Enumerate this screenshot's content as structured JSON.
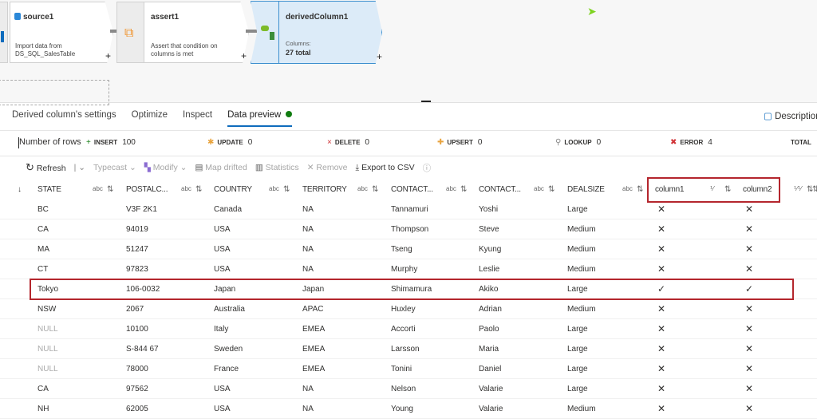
{
  "pipeline": {
    "nodes": [
      {
        "title": "source1",
        "description": "Import data from DS_SQL_SalesTable"
      },
      {
        "title": "assert1",
        "description": "Assert that condition on columns is met"
      },
      {
        "title": "derivedColumn1",
        "columns_label": "Columns:",
        "columns_value": "27 total"
      }
    ],
    "add_label": "+"
  },
  "tabs": [
    "Derived column's settings",
    "Optimize",
    "Inspect",
    "Data preview"
  ],
  "description_label": "Description",
  "stats": {
    "label": "Number of rows",
    "items": [
      {
        "name": "INSERT",
        "value": "100",
        "color": "#107c10",
        "icon": "+"
      },
      {
        "name": "UPDATE",
        "value": "0",
        "color": "#e8a33d",
        "icon": "✱"
      },
      {
        "name": "DELETE",
        "value": "0",
        "color": "#d13438",
        "icon": "×"
      },
      {
        "name": "UPSERT",
        "value": "0",
        "color": "#e8a33d",
        "icon": "✚"
      },
      {
        "name": "LOOKUP",
        "value": "0",
        "color": "#888888",
        "icon": "⚲"
      },
      {
        "name": "ERROR",
        "value": "4",
        "color": "#d13438",
        "icon": "✖"
      },
      {
        "name": "TOTAL",
        "value": "",
        "color": "#333333",
        "icon": ""
      }
    ]
  },
  "toolbar": {
    "refresh": "Refresh",
    "typecast": "Typecast",
    "modify": "Modify",
    "map_drifted": "Map drifted",
    "statistics": "Statistics",
    "remove": "Remove",
    "export": "Export to CSV"
  },
  "table": {
    "columns": [
      "STATE",
      "POSTALC...",
      "COUNTRY",
      "TERRITORY",
      "CONTACT...",
      "CONTACT...",
      "DEALSIZE",
      "column1",
      "column2"
    ],
    "rows": [
      [
        "BC",
        "V3F 2K1",
        "Canada",
        "NA",
        "Tannamuri",
        "Yoshi",
        "Large",
        "✕",
        "✕"
      ],
      [
        "CA",
        "94019",
        "USA",
        "NA",
        "Thompson",
        "Steve",
        "Medium",
        "✕",
        "✕"
      ],
      [
        "MA",
        "51247",
        "USA",
        "NA",
        "Tseng",
        "Kyung",
        "Medium",
        "✕",
        "✕"
      ],
      [
        "CT",
        "97823",
        "USA",
        "NA",
        "Murphy",
        "Leslie",
        "Medium",
        "✕",
        "✕"
      ],
      [
        "Tokyo",
        "106-0032",
        "Japan",
        "Japan",
        "Shimamura",
        "Akiko",
        "Large",
        "✓",
        "✓"
      ],
      [
        "NSW",
        "2067",
        "Australia",
        "APAC",
        "Huxley",
        "Adrian",
        "Medium",
        "✕",
        "✕"
      ],
      [
        "NULL",
        "10100",
        "Italy",
        "EMEA",
        "Accorti",
        "Paolo",
        "Large",
        "✕",
        "✕"
      ],
      [
        "NULL",
        "S-844 67",
        "Sweden",
        "EMEA",
        "Larsson",
        "Maria",
        "Large",
        "✕",
        "✕"
      ],
      [
        "NULL",
        "78000",
        "France",
        "EMEA",
        "Tonini",
        "Daniel",
        "Large",
        "✕",
        "✕"
      ],
      [
        "CA",
        "97562",
        "USA",
        "NA",
        "Nelson",
        "Valarie",
        "Large",
        "✕",
        "✕"
      ],
      [
        "NH",
        "62005",
        "USA",
        "NA",
        "Young",
        "Valarie",
        "Medium",
        "✕",
        "✕"
      ]
    ]
  }
}
